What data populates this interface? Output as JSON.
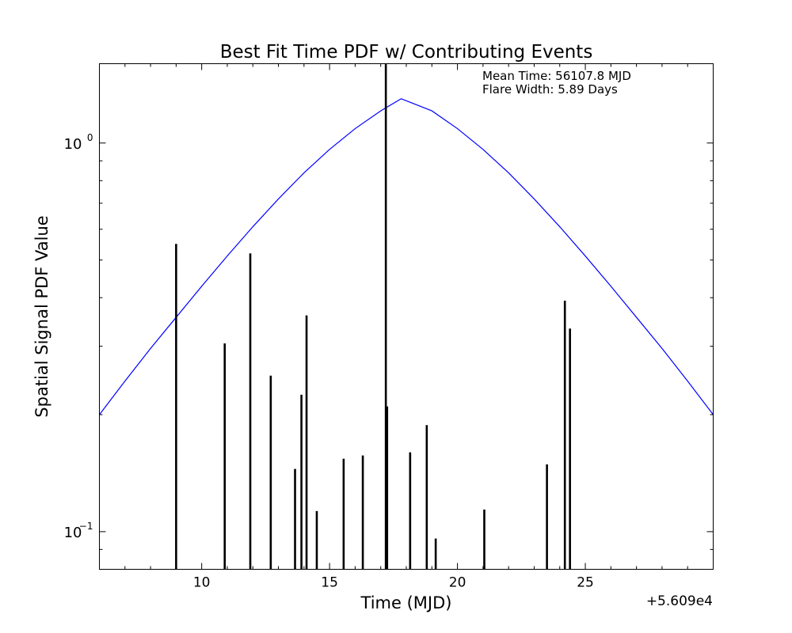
{
  "chart_data": {
    "type": "line",
    "title": "Best Fit Time PDF w/ Contributing Events",
    "xlabel": "Time (MJD)",
    "ylabel": "Spatial Signal PDF Value",
    "x_offset_label": "+5.609e4",
    "xlim": [
      6,
      30
    ],
    "ylim": [
      0.08,
      1.6
    ],
    "y_scale": "log",
    "grid": false,
    "x_ticks": [
      {
        "value": 10,
        "label": "10"
      },
      {
        "value": 15,
        "label": "15"
      },
      {
        "value": 20,
        "label": "20"
      },
      {
        "value": 25,
        "label": "25"
      }
    ],
    "y_ticks": [
      {
        "value": 0.1,
        "base": "10",
        "exp": "−1"
      },
      {
        "value": 1.0,
        "base": "10",
        "exp": "0"
      }
    ],
    "annotations": [
      "Mean Time: 56107.8 MJD",
      "Flare Width: 5.89 Days"
    ],
    "curve": {
      "color": "#0000ff",
      "x": [
        6.0,
        7.0,
        8.0,
        9.0,
        10.0,
        11.0,
        12.0,
        13.0,
        14.0,
        15.0,
        16.0,
        17.0,
        17.8,
        19.0,
        20.0,
        21.0,
        22.0,
        23.0,
        24.0,
        25.0,
        26.0,
        27.0,
        28.0,
        29.0,
        30.0
      ],
      "y": [
        0.2,
        0.244,
        0.296,
        0.356,
        0.428,
        0.512,
        0.609,
        0.718,
        0.838,
        0.963,
        1.089,
        1.21,
        1.3,
        1.21,
        1.089,
        0.963,
        0.838,
        0.718,
        0.609,
        0.512,
        0.428,
        0.356,
        0.296,
        0.244,
        0.2
      ]
    },
    "events": {
      "color": "#000000",
      "x": [
        9.0,
        10.9,
        11.9,
        12.7,
        13.65,
        13.9,
        14.1,
        14.5,
        15.55,
        16.3,
        17.2,
        17.25,
        18.15,
        18.8,
        19.15,
        21.05,
        23.5,
        24.2,
        24.4
      ],
      "y": [
        0.55,
        0.305,
        0.52,
        0.252,
        0.145,
        0.225,
        0.36,
        0.113,
        0.154,
        0.157,
        1.66,
        0.21,
        0.16,
        0.188,
        0.096,
        0.114,
        0.149,
        0.393,
        0.333
      ]
    }
  }
}
